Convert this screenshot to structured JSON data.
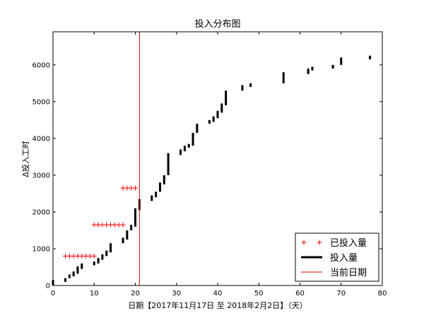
{
  "chart_data": {
    "type": "bar",
    "title": "投入分布图",
    "xlabel": "日期【2017年11月17日 至 2018年2月2日】（天）",
    "ylabel": "Δ投入工时",
    "xlim": [
      0,
      80
    ],
    "ylim": [
      0,
      6900
    ],
    "xticks": [
      0,
      10,
      20,
      30,
      40,
      50,
      60,
      70,
      80
    ],
    "yticks": [
      0,
      1000,
      2000,
      3000,
      4000,
      5000,
      6000
    ],
    "grid": false,
    "legend_position": "bottom-right",
    "current_date": 21,
    "series": [
      {
        "name": "已投入量",
        "kind": "plus-markers",
        "color": "#ff0000",
        "points": [
          [
            3,
            800
          ],
          [
            4,
            800
          ],
          [
            5,
            800
          ],
          [
            6,
            800
          ],
          [
            7,
            800
          ],
          [
            8,
            800
          ],
          [
            9,
            800
          ],
          [
            10,
            800
          ],
          [
            10,
            1650
          ],
          [
            11,
            1650
          ],
          [
            12,
            1650
          ],
          [
            13,
            1650
          ],
          [
            14,
            1650
          ],
          [
            15,
            1650
          ],
          [
            16,
            1650
          ],
          [
            17,
            1650
          ],
          [
            17,
            2650
          ],
          [
            18,
            2650
          ],
          [
            19,
            2650
          ],
          [
            20,
            2650
          ]
        ]
      },
      {
        "name": "投入量",
        "kind": "vertical-bars",
        "color": "#000000",
        "bars": [
          [
            0,
            0,
            150
          ],
          [
            3,
            100,
            200
          ],
          [
            4,
            200,
            300
          ],
          [
            5,
            250,
            380
          ],
          [
            6,
            320,
            520
          ],
          [
            7,
            450,
            600
          ],
          [
            10,
            550,
            650
          ],
          [
            11,
            600,
            750
          ],
          [
            12,
            700,
            850
          ],
          [
            13,
            800,
            950
          ],
          [
            14,
            900,
            1150
          ],
          [
            17,
            1150,
            1300
          ],
          [
            18,
            1250,
            1500
          ],
          [
            19,
            1500,
            1650
          ],
          [
            20,
            1600,
            2100
          ],
          [
            21,
            2050,
            2350
          ],
          [
            24,
            2300,
            2450
          ],
          [
            25,
            2400,
            2550
          ],
          [
            26,
            2550,
            2800
          ],
          [
            27,
            2750,
            3000
          ],
          [
            28,
            3000,
            3600
          ],
          [
            31,
            3550,
            3700
          ],
          [
            32,
            3650,
            3800
          ],
          [
            33,
            3750,
            3850
          ],
          [
            34,
            3800,
            4150
          ],
          [
            35,
            4150,
            4400
          ],
          [
            38,
            4400,
            4500
          ],
          [
            39,
            4450,
            4600
          ],
          [
            40,
            4550,
            4750
          ],
          [
            41,
            4700,
            4950
          ],
          [
            42,
            4900,
            5300
          ],
          [
            46,
            5300,
            5450
          ],
          [
            48,
            5400,
            5500
          ],
          [
            56,
            5500,
            5800
          ],
          [
            62,
            5750,
            5900
          ],
          [
            63,
            5850,
            5950
          ],
          [
            68,
            5900,
            6000
          ],
          [
            70,
            6000,
            6200
          ],
          [
            77,
            6150,
            6250
          ]
        ]
      },
      {
        "name": "当前日期",
        "kind": "vline",
        "color": "#cc0000"
      }
    ]
  }
}
